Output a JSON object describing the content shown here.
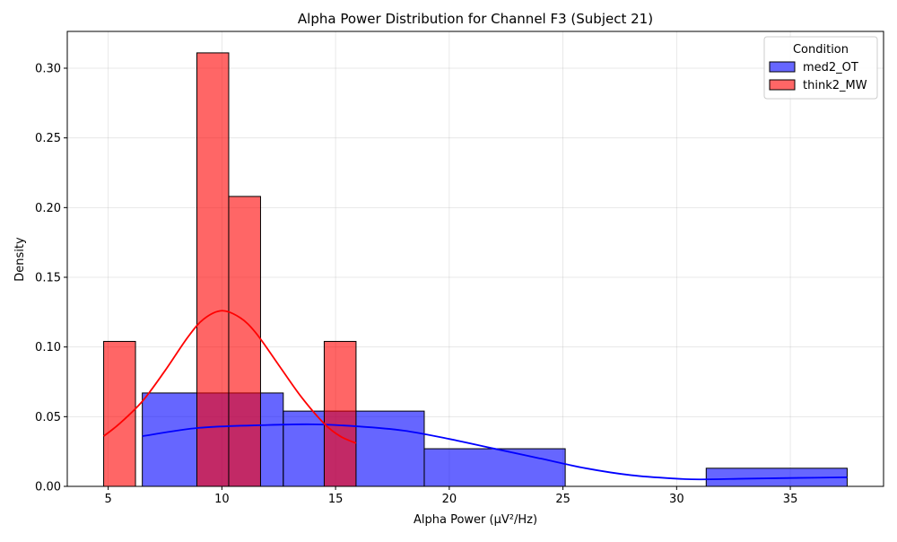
{
  "chart_data": {
    "type": "histogram",
    "title": "Alpha Power Distribution for Channel F3 (Subject 21)",
    "xlabel": "Alpha Power (µV²/Hz)",
    "ylabel": "Density",
    "xlim": [
      3.2,
      39.1
    ],
    "ylim": [
      0,
      0.3264
    ],
    "x_ticks": [
      5,
      10,
      15,
      20,
      25,
      30,
      35
    ],
    "y_ticks": [
      0.0,
      0.05,
      0.1,
      0.15,
      0.2,
      0.25,
      0.3
    ],
    "x_tick_labels": [
      "5",
      "10",
      "15",
      "20",
      "25",
      "30",
      "35"
    ],
    "y_tick_labels": [
      "0.00",
      "0.05",
      "0.10",
      "0.15",
      "0.20",
      "0.25",
      "0.30"
    ],
    "grid": true,
    "legend": {
      "title": "Condition",
      "placement": "top-right",
      "entries": [
        {
          "label": "med2_OT",
          "color": "#6666ff"
        },
        {
          "label": "think2_MW",
          "color": "#ff6666"
        }
      ]
    },
    "series": [
      {
        "name": "med2_OT",
        "fill_color": "#0000ff",
        "fill_opacity": 0.6,
        "line_color": "#0000ff",
        "bins": [
          {
            "x0": 6.5,
            "x1": 12.7,
            "density": 0.067
          },
          {
            "x0": 12.7,
            "x1": 18.9,
            "density": 0.054
          },
          {
            "x0": 18.9,
            "x1": 25.1,
            "density": 0.027
          },
          {
            "x0": 25.1,
            "x1": 31.3,
            "density": 0.0
          },
          {
            "x0": 31.3,
            "x1": 37.5,
            "density": 0.013
          }
        ],
        "kde": {
          "x": [
            6.5,
            9,
            12,
            14,
            16,
            18,
            20,
            22,
            24,
            26,
            28,
            30,
            31,
            33,
            35,
            37.5
          ],
          "y": [
            0.036,
            0.042,
            0.044,
            0.0445,
            0.043,
            0.04,
            0.034,
            0.027,
            0.02,
            0.013,
            0.008,
            0.0055,
            0.005,
            0.0055,
            0.006,
            0.0065
          ]
        }
      },
      {
        "name": "think2_MW",
        "fill_color": "#ff0000",
        "fill_opacity": 0.6,
        "line_color": "#ff0000",
        "bins": [
          {
            "x0": 4.8,
            "x1": 6.2,
            "density": 0.104
          },
          {
            "x0": 6.2,
            "x1": 7.6,
            "density": 0.0
          },
          {
            "x0": 7.6,
            "x1": 8.9,
            "density": 0.0
          },
          {
            "x0": 8.9,
            "x1": 10.3,
            "density": 0.311
          },
          {
            "x0": 10.3,
            "x1": 11.7,
            "density": 0.208
          },
          {
            "x0": 11.7,
            "x1": 13.1,
            "density": 0.0
          },
          {
            "x0": 13.1,
            "x1": 14.5,
            "density": 0.0
          },
          {
            "x0": 14.5,
            "x1": 15.9,
            "density": 0.104
          }
        ],
        "kde": {
          "x": [
            4.8,
            5.5,
            6.5,
            7.5,
            8.5,
            9.2,
            10.0,
            10.8,
            11.5,
            12.5,
            13.5,
            14.5,
            15.2,
            15.9
          ],
          "y": [
            0.036,
            0.045,
            0.061,
            0.083,
            0.107,
            0.12,
            0.126,
            0.121,
            0.11,
            0.087,
            0.064,
            0.045,
            0.036,
            0.031
          ]
        }
      }
    ]
  }
}
